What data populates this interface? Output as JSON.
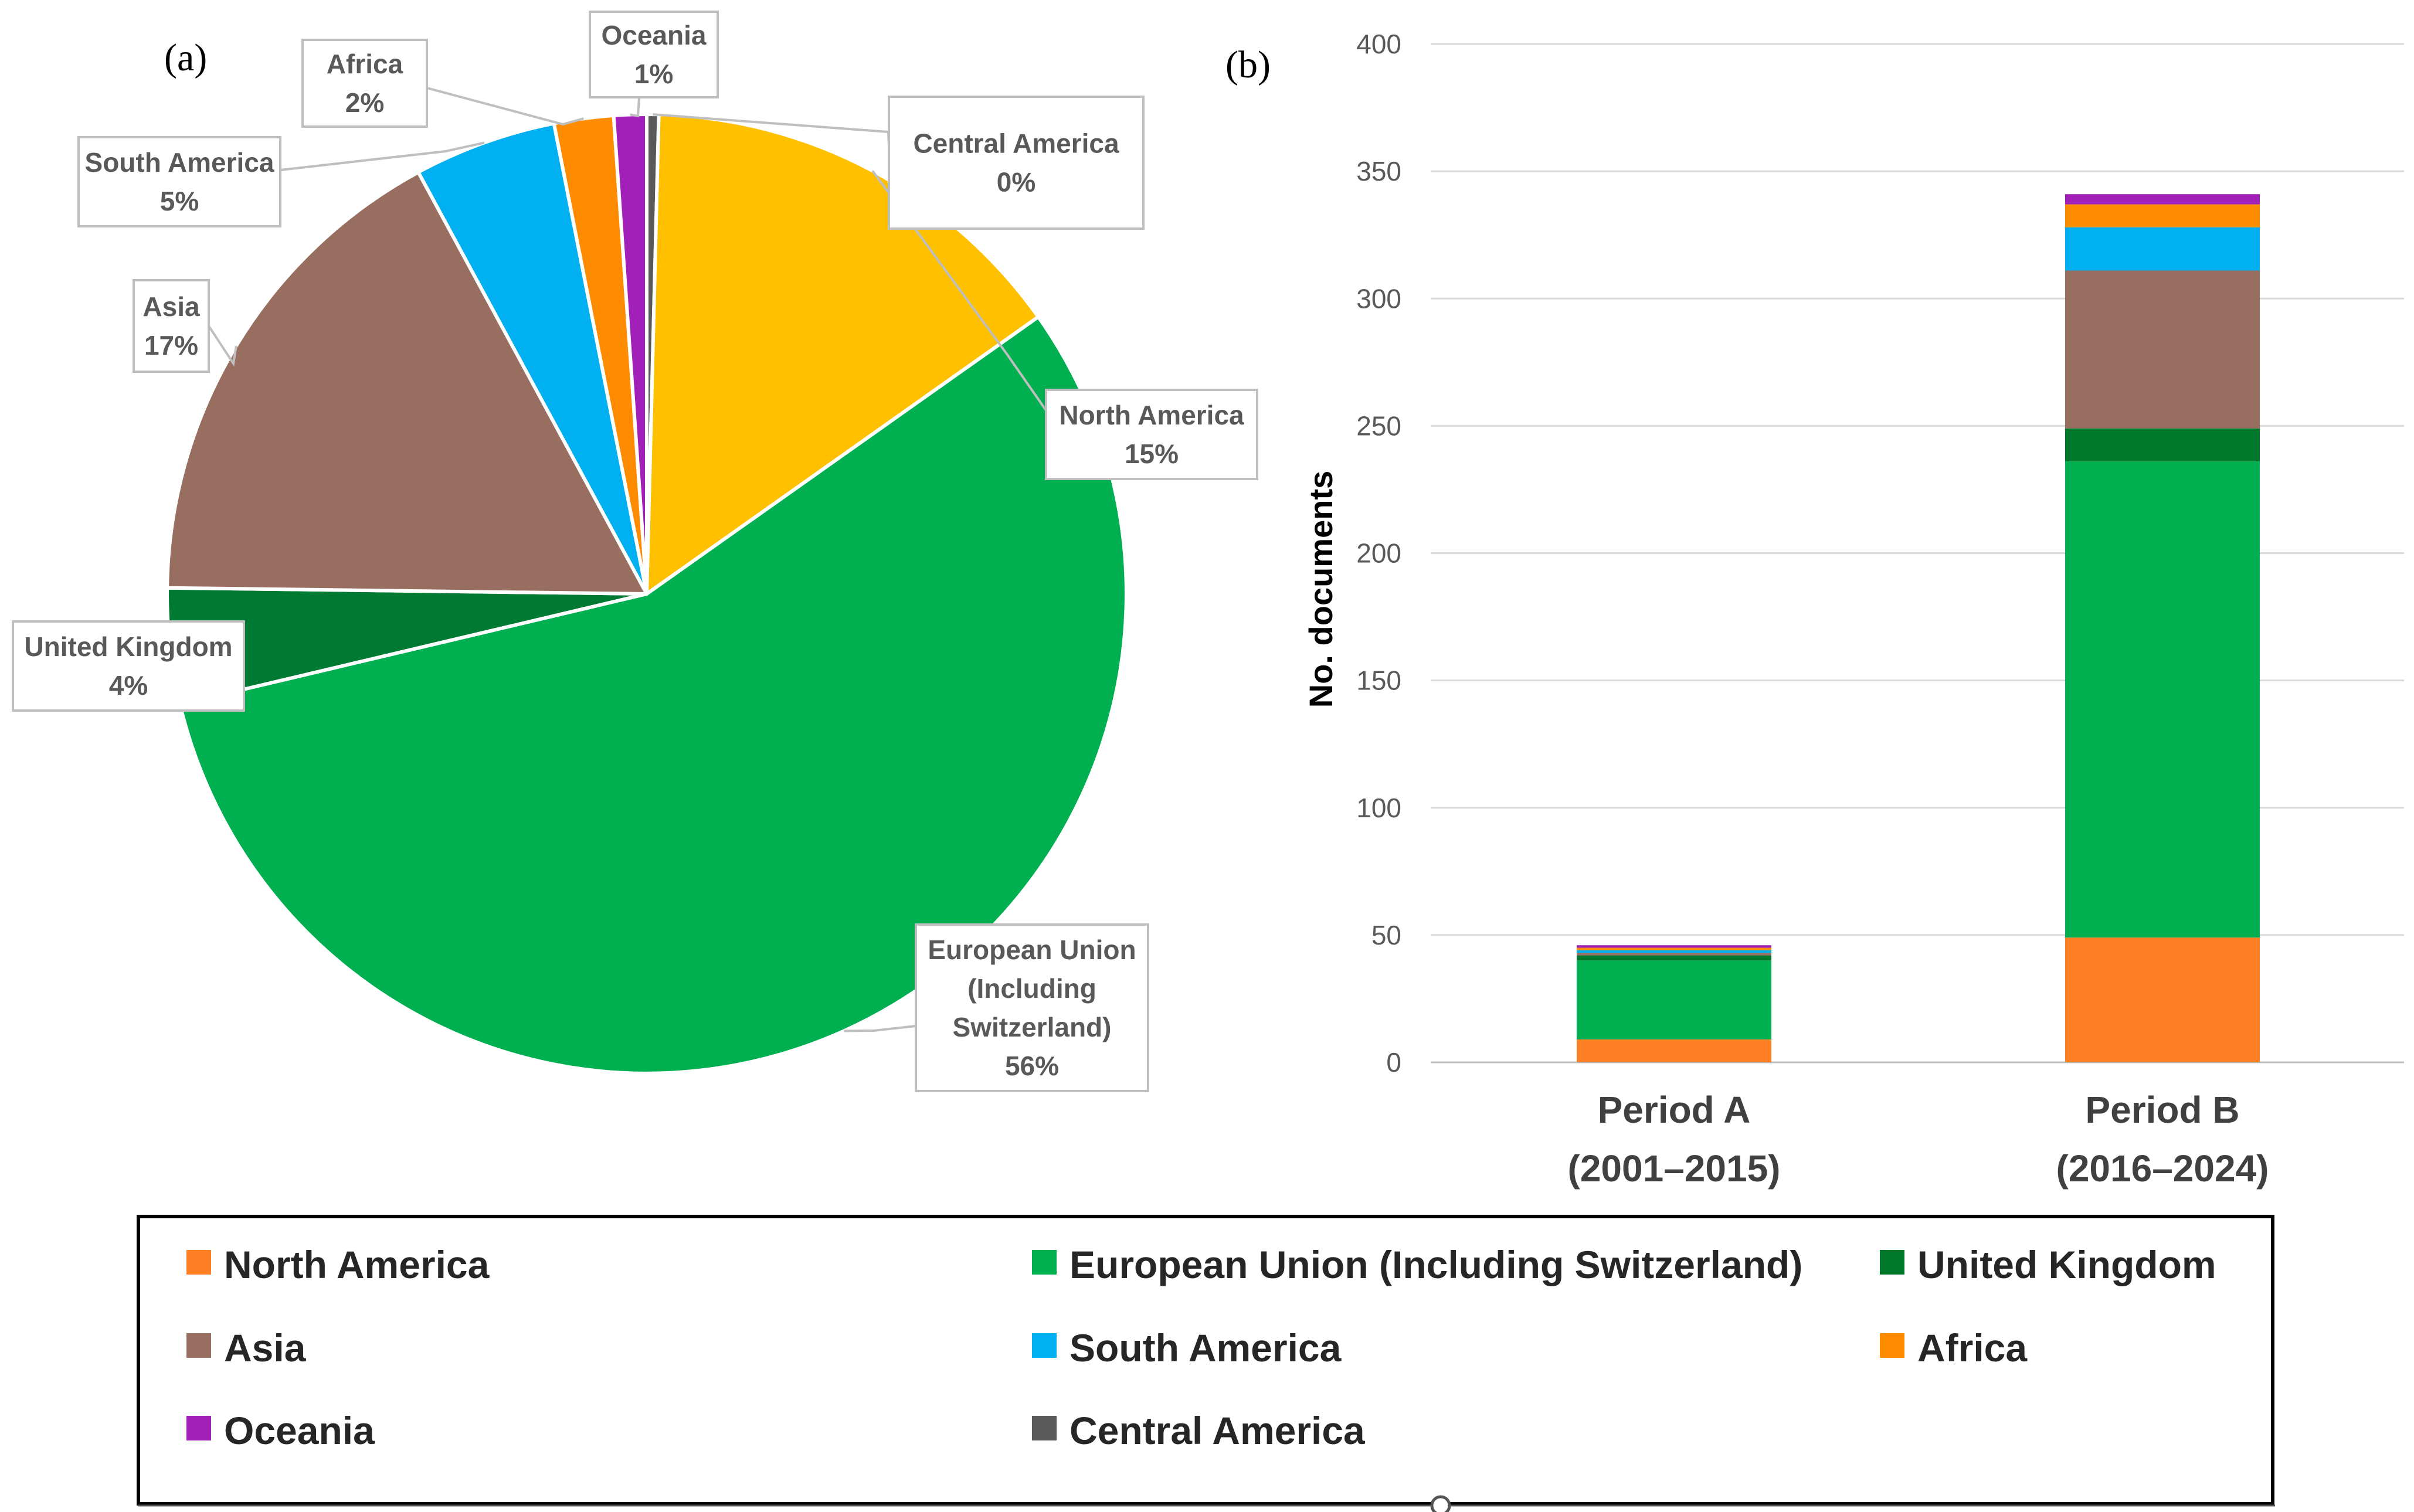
{
  "panels": {
    "a": "(a)",
    "b": "(b)"
  },
  "chart_data": [
    {
      "type": "pie",
      "panel": "(a)",
      "slices": [
        {
          "name": "Central America",
          "value": 0.4,
          "label": "Central America",
          "pct": "0%",
          "color": "#595959"
        },
        {
          "name": "North America",
          "value": 14.8,
          "label": "North America",
          "pct": "15%",
          "color": "#FFC000"
        },
        {
          "name": "European Union (Including Switzerland)",
          "value": 56.1,
          "label_lines": [
            "European Union",
            "(Including",
            "Switzerland)"
          ],
          "pct": "56%",
          "color": "#00B050"
        },
        {
          "name": "United Kingdom",
          "value": 3.9,
          "label": "United Kingdom",
          "pct": "4%",
          "color": "#007A33"
        },
        {
          "name": "Asia",
          "value": 16.9,
          "label": "Asia",
          "pct": "17%",
          "color": "#976E60"
        },
        {
          "name": "South America",
          "value": 4.8,
          "label": "South America",
          "pct": "5%",
          "color": "#00B0F0"
        },
        {
          "name": "Africa",
          "value": 2.0,
          "label": "Africa",
          "pct": "2%",
          "color": "#FF8C00"
        },
        {
          "name": "Oceania",
          "value": 1.1,
          "label": "Oceania",
          "pct": "1%",
          "color": "#A020B8"
        }
      ]
    },
    {
      "type": "bar",
      "stacked": true,
      "panel": "(b)",
      "categories": [
        {
          "line1": "Period A",
          "line2": "(2001–2015)"
        },
        {
          "line1": "Period B",
          "line2": "(2016–2024)"
        }
      ],
      "ylabel": "No. documents",
      "ylim": [
        0,
        400
      ],
      "yticks": [
        "0",
        "50",
        "100",
        "150",
        "200",
        "250",
        "300",
        "350",
        "400"
      ],
      "series": [
        {
          "name": "North America",
          "color": "#FF7F27",
          "values": [
            9,
            49
          ]
        },
        {
          "name": "European Union  (Including Switzerland)",
          "color": "#00B050",
          "values": [
            31,
            187
          ]
        },
        {
          "name": "United Kingdom",
          "color": "#00782B",
          "values": [
            2,
            13
          ]
        },
        {
          "name": "Asia",
          "color": "#976E60",
          "values": [
            1,
            62
          ]
        },
        {
          "name": "South America",
          "color": "#00B0F0",
          "values": [
            1,
            17
          ]
        },
        {
          "name": "Africa",
          "color": "#FF8C00",
          "values": [
            1,
            9
          ]
        },
        {
          "name": "Oceania",
          "color": "#A020B8",
          "values": [
            1,
            4
          ]
        },
        {
          "name": "Central America",
          "color": "#595959",
          "values": [
            0,
            0
          ]
        }
      ]
    }
  ],
  "legend": {
    "items": [
      {
        "name": "North America",
        "color": "#FF7F27"
      },
      {
        "name": "European Union  (Including Switzerland)",
        "color": "#00B050"
      },
      {
        "name": "United Kingdom",
        "color": "#00782B"
      },
      {
        "name": "Asia",
        "color": "#976E60"
      },
      {
        "name": "South America",
        "color": "#00B0F0"
      },
      {
        "name": "Africa",
        "color": "#FF8C00"
      },
      {
        "name": "Oceania",
        "color": "#A020B8"
      },
      {
        "name": "Central America",
        "color": "#595959"
      }
    ]
  }
}
